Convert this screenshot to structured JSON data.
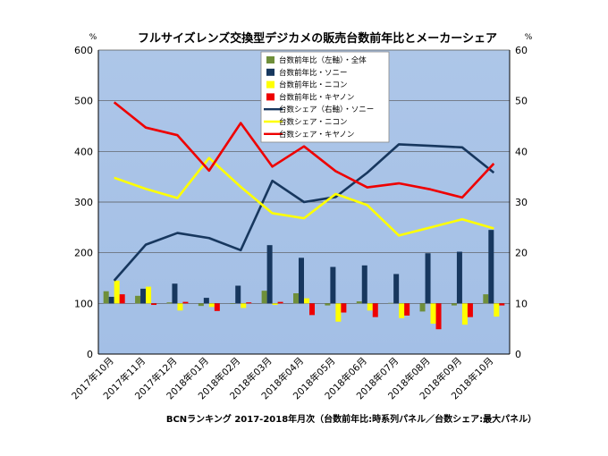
{
  "chart_data": {
    "type": "bar+line",
    "title": "フルサイズレンズ交換型デジカメの販売台数前年比とメーカーシェア",
    "footnote": "BCNランキング 2017-2018年月次（台数前年比:時系列パネル／台数シェア:最大パネル）",
    "left_unit": "%",
    "right_unit": "%",
    "ylim_left": [
      0,
      600
    ],
    "ylim_right": [
      0,
      60
    ],
    "yticks_left": [
      "0",
      "100",
      "200",
      "300",
      "400",
      "500",
      "600"
    ],
    "yticks_right": [
      "0",
      "10",
      "20",
      "30",
      "40",
      "50",
      "60"
    ],
    "categories": [
      "2017年10月",
      "2017年11月",
      "2017年12月",
      "2018年01月",
      "2018年02月",
      "2018年03月",
      "2018年04月",
      "2018年05月",
      "2018年06月",
      "2018年07月",
      "2018年08月",
      "2018年09月",
      "2018年10月"
    ],
    "bar_series": [
      {
        "name": "台数前年比（左軸）・全体",
        "color": "#6f8f3a",
        "values": [
          124,
          115,
          102,
          95,
          100,
          125,
          120,
          96,
          104,
          101,
          84,
          96,
          118
        ]
      },
      {
        "name": "台数前年比・ソニー",
        "color": "#17375e",
        "values": [
          113,
          129,
          139,
          111,
          135,
          215,
          190,
          172,
          175,
          158,
          199,
          202,
          245
        ]
      },
      {
        "name": "台数前年比・ニコン",
        "color": "#ffff00",
        "values": [
          145,
          133,
          86,
          93,
          91,
          97,
          110,
          64,
          86,
          71,
          60,
          58,
          74
        ]
      },
      {
        "name": "台数前年比・キヤノン",
        "color": "#ee0000",
        "values": [
          118,
          97,
          103,
          85,
          102,
          103,
          77,
          82,
          73,
          76,
          49,
          73,
          96
        ]
      }
    ],
    "line_series": [
      {
        "name": "台数シェア（右軸）・ソニー",
        "color": "#17375e",
        "values": [
          14.5,
          21.6,
          23.9,
          22.9,
          20.5,
          34.2,
          30.0,
          31.0,
          35.8,
          41.4,
          41.1,
          40.8,
          35.8
        ]
      },
      {
        "name": "台数シェア・ニコン",
        "color": "#ffff00",
        "values": [
          34.8,
          32.6,
          30.8,
          38.7,
          33.0,
          27.8,
          26.8,
          31.6,
          29.4,
          23.4,
          25.0,
          26.6,
          24.8
        ]
      },
      {
        "name": "台数シェア・キヤノン",
        "color": "#ee0000",
        "values": [
          49.7,
          44.7,
          43.2,
          36.2,
          45.6,
          37.0,
          41.0,
          36.1,
          32.9,
          33.7,
          32.5,
          30.9,
          37.6
        ]
      }
    ]
  }
}
